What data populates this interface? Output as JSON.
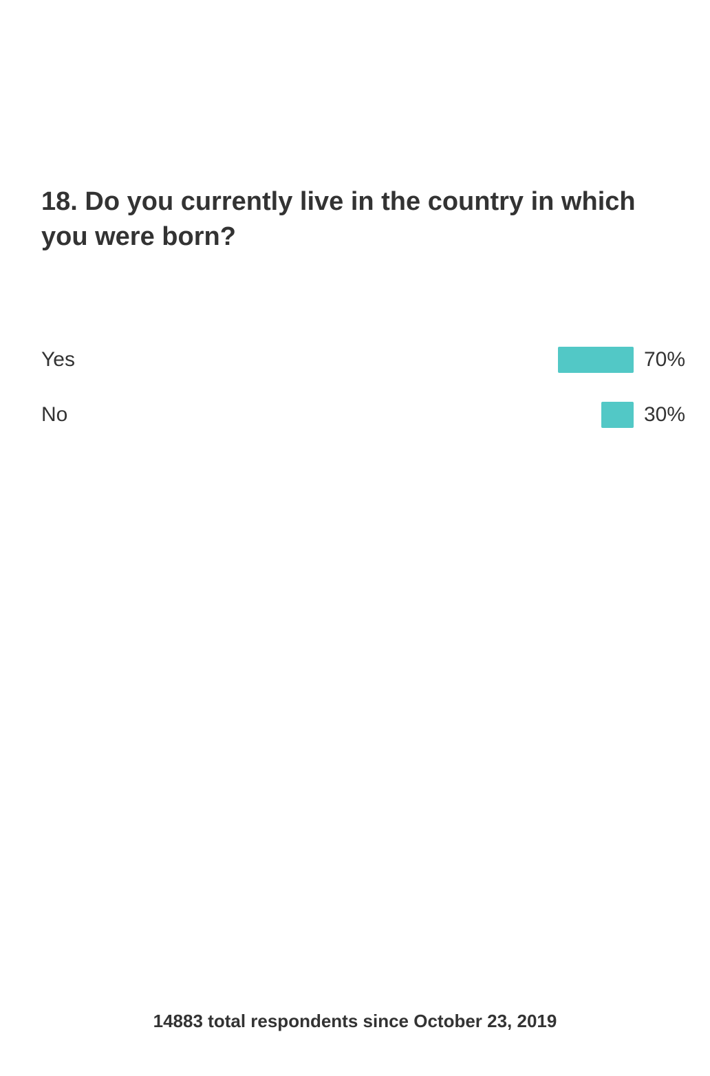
{
  "question": {
    "title": "18. Do you currently live in the country in which you were born?"
  },
  "colors": {
    "bar": "#52c8c6",
    "text": "#333333"
  },
  "chart_data": {
    "type": "bar",
    "orientation": "horizontal",
    "categories": [
      "Yes",
      "No"
    ],
    "values": [
      70,
      30
    ],
    "value_labels": [
      "70%",
      "30%"
    ],
    "unit": "%",
    "xlim": [
      0,
      100
    ],
    "grid": false,
    "legend": "none"
  },
  "footer": {
    "text": "14883 total respondents since October 23, 2019"
  }
}
